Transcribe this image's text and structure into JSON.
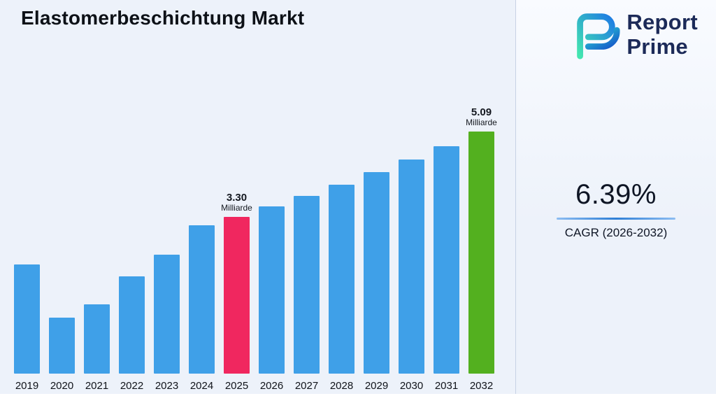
{
  "header": {
    "title": "Elastomerbeschichtung Markt"
  },
  "logo": {
    "line1": "Report",
    "line2": "Prime"
  },
  "stats": {
    "cagr_value": "6.39%",
    "cagr_label": "CAGR (2026-2032)"
  },
  "chart_data": {
    "type": "bar",
    "title": "Elastomerbeschichtung Markt",
    "unit": "Milliarde",
    "categories": [
      "2019",
      "2020",
      "2021",
      "2022",
      "2023",
      "2024",
      "2025",
      "2026",
      "2027",
      "2028",
      "2029",
      "2030",
      "2031",
      "2032"
    ],
    "values": [
      2.3,
      1.17,
      1.45,
      2.05,
      2.5,
      3.12,
      3.3,
      3.51,
      3.73,
      3.97,
      4.23,
      4.5,
      4.78,
      5.09
    ],
    "data_labels": [
      {
        "year": "2025",
        "text": "3.30",
        "unit": "Milliarde"
      },
      {
        "year": "2032",
        "text": "5.09",
        "unit": "Milliarde"
      }
    ],
    "colors": {
      "default": "#3fa0e8",
      "highlights": {
        "2025": "#f0275f",
        "2032": "#53b01f"
      }
    },
    "xlabel": "",
    "ylabel": "",
    "ylim": [
      0,
      5.5
    ],
    "grid": false,
    "legend": "none"
  }
}
